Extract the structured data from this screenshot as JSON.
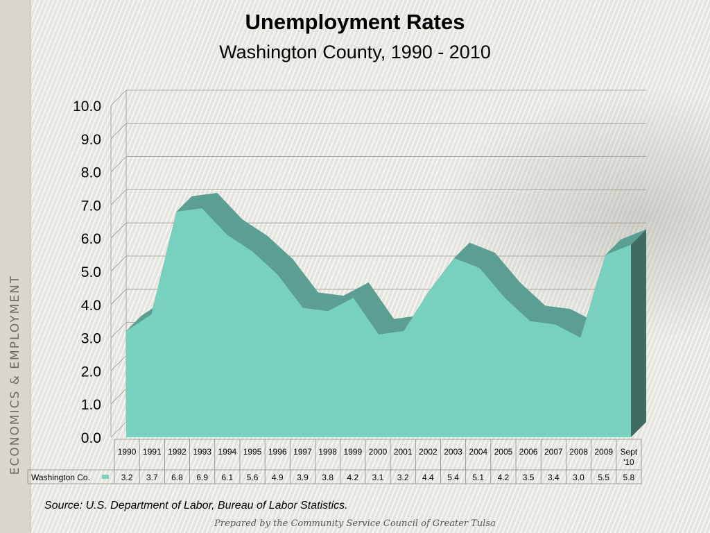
{
  "side_label": "ECONOMICS & EMPLOYMENT",
  "source": "Source:  U.S. Department of Labor, Bureau of Labor Statistics.",
  "footer": "Prepared by the Community Service Council of Greater Tulsa",
  "colors": {
    "front": "#78d1bf",
    "top": "#5b9e92",
    "side": "#3f6b62",
    "grid": "#9a978e"
  },
  "chart_data": {
    "type": "area",
    "title": "Unemployment Rates",
    "subtitle": "Washington County, 1990 - 2010",
    "categories": [
      "1990",
      "1991",
      "1992",
      "1993",
      "1994",
      "1995",
      "1996",
      "1997",
      "1998",
      "1999",
      "2000",
      "2001",
      "2002",
      "2003",
      "2004",
      "2005",
      "2006",
      "2007",
      "2008",
      "2009",
      "Sept '10"
    ],
    "series": [
      {
        "name": "Washington Co.",
        "values": [
          3.2,
          3.7,
          6.8,
          6.9,
          6.1,
          5.6,
          4.9,
          3.9,
          3.8,
          4.2,
          3.1,
          3.2,
          4.4,
          5.4,
          5.1,
          4.2,
          3.5,
          3.4,
          3.0,
          5.5,
          5.8
        ]
      }
    ],
    "yticks": [
      "0.0",
      "1.0",
      "2.0",
      "3.0",
      "4.0",
      "5.0",
      "6.0",
      "7.0",
      "8.0",
      "9.0",
      "10.0"
    ],
    "ylim": [
      0,
      10
    ],
    "data_table": true,
    "style": "3D area"
  }
}
